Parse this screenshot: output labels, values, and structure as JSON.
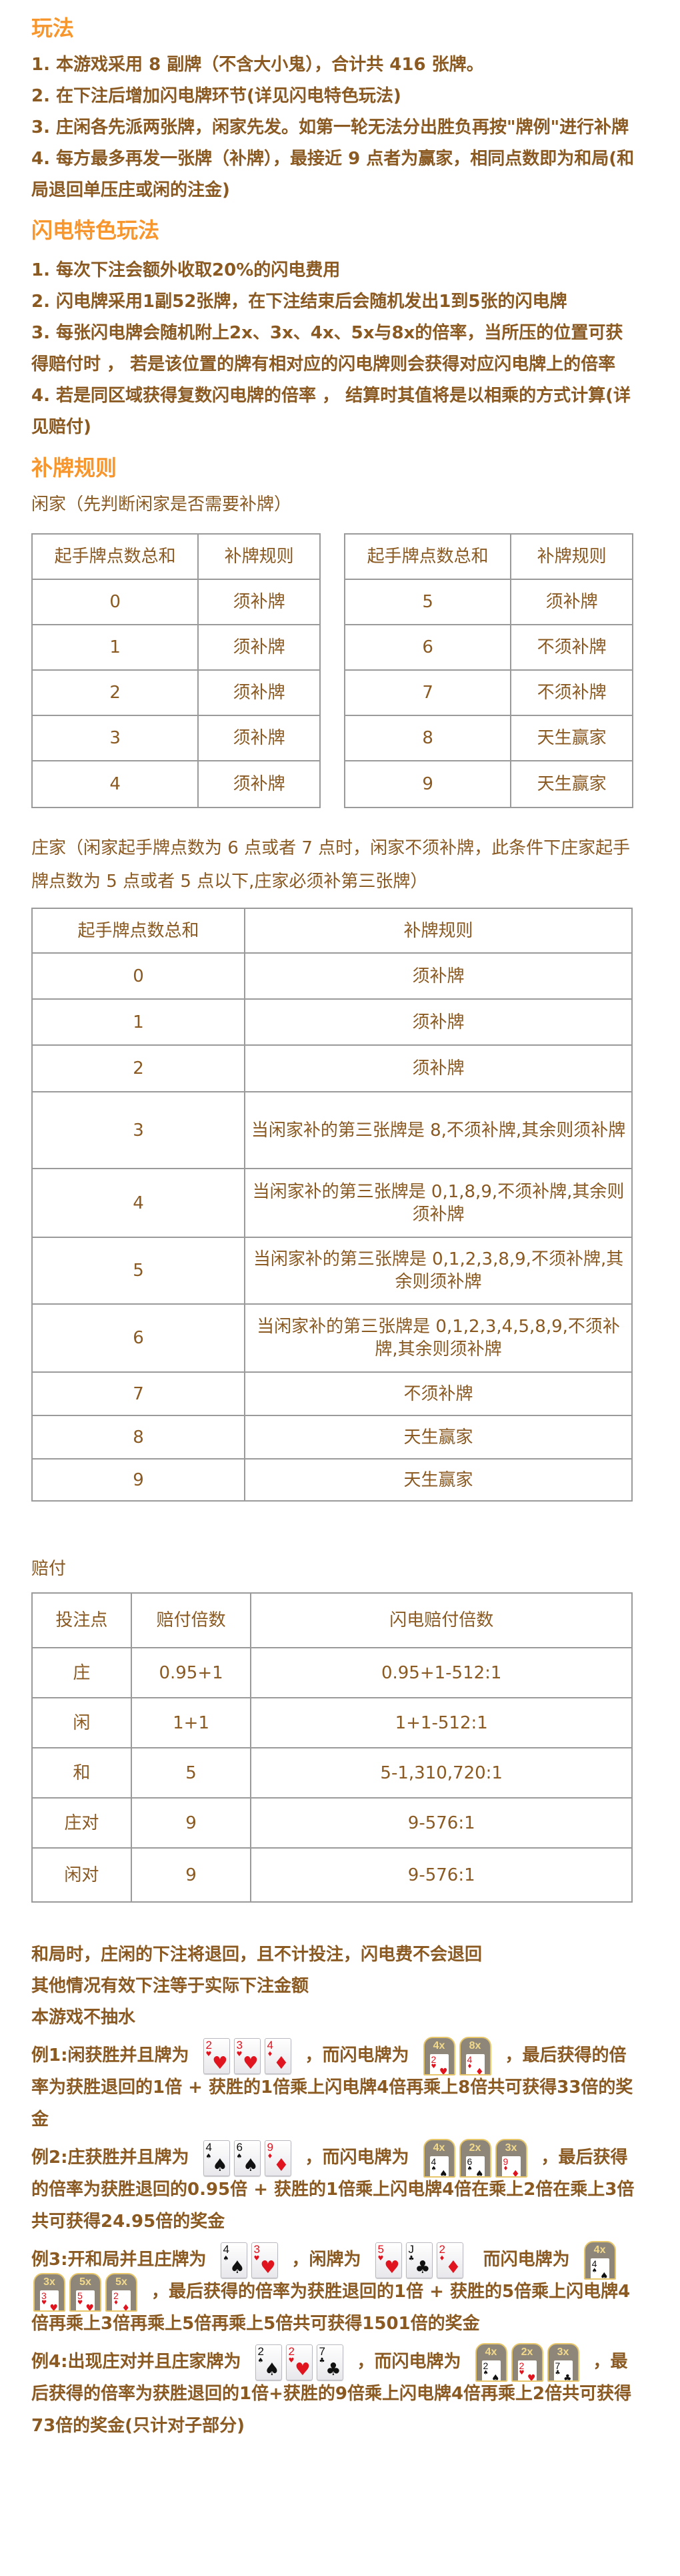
{
  "colors": {
    "heading": "#f7962c",
    "text": "#8a5a22",
    "border": "#9a9a9a",
    "red_suit": "#e0141e",
    "black_suit": "#111111",
    "flash_frame": "#e8c66a"
  },
  "rules": {
    "heading": "玩法",
    "items": [
      "1. 本游戏采用 8 副牌（不含大小鬼），合计共 416 张牌。",
      "2. 在下注后增加闪电牌环节(详见闪电特色玩法)",
      "3. 庄闲各先派两张牌，闲家先发。如第一轮无法分出胜负再按\"牌例\"进行补牌",
      "4. 每方最多再发一张牌（补牌），最接近 9 点者为赢家，相同点数即为和局(和局退回单压庄或闲的注金)"
    ]
  },
  "lightning": {
    "heading": "闪电特色玩法",
    "items": [
      "1. 每次下注会额外收取20%的闪电费用",
      "2. 闪电牌采用1副52张牌，在下注结束后会随机发出1到5张的闪电牌",
      "3. 每张闪电牌会随机附上2x、3x、4x、5x与8x的倍率，当所压的位置可获得赔付时 ， 若是该位置的牌有相对应的闪电牌则会获得对应闪电牌上的倍率",
      "4. 若是同区域获得复数闪电牌的倍率 ， 结算时其值将是以相乘的方式计算(详见赔付)"
    ]
  },
  "draw_rules": {
    "heading": "补牌规则",
    "player_note": "闲家（先判断闲家是否需要补牌）",
    "player_tables": [
      {
        "headers": [
          "起手牌点数总和",
          "补牌规则"
        ],
        "rows": [
          [
            "0",
            "须补牌"
          ],
          [
            "1",
            "须补牌"
          ],
          [
            "2",
            "须补牌"
          ],
          [
            "3",
            "须补牌"
          ],
          [
            "4",
            "须补牌"
          ]
        ]
      },
      {
        "headers": [
          "起手牌点数总和",
          "补牌规则"
        ],
        "rows": [
          [
            "5",
            "须补牌"
          ],
          [
            "6",
            "不须补牌"
          ],
          [
            "7",
            "不须补牌"
          ],
          [
            "8",
            "天生赢家"
          ],
          [
            "9",
            "天生赢家"
          ]
        ]
      }
    ],
    "banker_note": "庄家（闲家起手牌点数为 6 点或者 7 点时，闲家不须补牌，此条件下庄家起手牌点数为 5 点或者 5 点以下,庄家必须补第三张牌）",
    "banker_table": {
      "headers": [
        "起手牌点数总和",
        "补牌规则"
      ],
      "rows": [
        [
          "0",
          "须补牌"
        ],
        [
          "1",
          "须补牌"
        ],
        [
          "2",
          "须补牌"
        ],
        [
          "3",
          "当闲家补的第三张牌是 8,不须补牌,其余则须补牌"
        ],
        [
          "4",
          "当闲家补的第三张牌是 0,1,8,9,不须补牌,其余则须补牌"
        ],
        [
          "5",
          "当闲家补的第三张牌是 0,1,2,3,8,9,不须补牌,其余则须补牌"
        ],
        [
          "6",
          "当闲家补的第三张牌是 0,1,2,3,4,5,8,9,不须补牌,其余则须补牌"
        ],
        [
          "7",
          "不须补牌"
        ],
        [
          "8",
          "天生赢家"
        ],
        [
          "9",
          "天生赢家"
        ]
      ]
    }
  },
  "payout": {
    "label": "赔付",
    "headers": [
      "投注点",
      "赔付倍数",
      "闪电赔付倍数"
    ],
    "rows": [
      [
        "庄",
        "0.95+1",
        "0.95+1-512:1"
      ],
      [
        "闲",
        "1+1",
        "1+1-512:1"
      ],
      [
        "和",
        "5",
        "5-1,310,720:1"
      ],
      [
        "庄对",
        "9",
        "9-576:1"
      ],
      [
        "闲对",
        "9",
        "9-576:1"
      ]
    ]
  },
  "notes": [
    "和局时，庄闲的下注将退回，且不计投注，闪电费不会退回",
    "其他情况有效下注等于实际下注金额",
    "本游戏不抽水"
  ],
  "examples": [
    {
      "segments": [
        {
          "text": "例1:闲获胜并且牌为"
        },
        {
          "cards": [
            {
              "rank": "2",
              "suit": "♥"
            },
            {
              "rank": "3",
              "suit": "♥"
            },
            {
              "rank": "4",
              "suit": "♦"
            }
          ]
        },
        {
          "text": "，而闪电牌为"
        },
        {
          "flash": [
            {
              "mult": "4x",
              "rank": "2",
              "suit": "♥"
            },
            {
              "mult": "8x",
              "rank": "4",
              "suit": "♦"
            }
          ]
        },
        {
          "text": "，最后获得的倍率为获胜退回的1倍 + 获胜的1倍乘上闪电牌4倍再乘上8倍共可获得33倍的奖金"
        }
      ]
    },
    {
      "segments": [
        {
          "text": "例2:庄获胜并且牌为"
        },
        {
          "cards": [
            {
              "rank": "4",
              "suit": "♠"
            },
            {
              "rank": "6",
              "suit": "♠"
            },
            {
              "rank": "9",
              "suit": "♦"
            }
          ]
        },
        {
          "text": "，而闪电牌为"
        },
        {
          "flash": [
            {
              "mult": "4x",
              "rank": "4",
              "suit": "♠"
            },
            {
              "mult": "2x",
              "rank": "6",
              "suit": "♠"
            },
            {
              "mult": "3x",
              "rank": "9",
              "suit": "♦"
            }
          ]
        },
        {
          "text": "，最后获得的倍率为获胜退回的0.95倍 + 获胜的1倍乘上闪电牌4倍在乘上2倍在乘上3倍共可获得24.95倍的奖金"
        }
      ]
    },
    {
      "segments": [
        {
          "text": "例3:开和局并且庄牌为"
        },
        {
          "cards": [
            {
              "rank": "4",
              "suit": "♠"
            },
            {
              "rank": "3",
              "suit": "♥"
            }
          ]
        },
        {
          "text": "，闲牌为"
        },
        {
          "cards": [
            {
              "rank": "5",
              "suit": "♥"
            },
            {
              "rank": "J",
              "suit": "♣"
            },
            {
              "rank": "2",
              "suit": "♦"
            }
          ]
        },
        {
          "text": " 而闪电牌为"
        },
        {
          "flash": [
            {
              "mult": "4x",
              "rank": "4",
              "suit": "♠"
            },
            {
              "mult": "3x",
              "rank": "3",
              "suit": "♥"
            },
            {
              "mult": "5x",
              "rank": "5",
              "suit": "♥"
            },
            {
              "mult": "5x",
              "rank": "2",
              "suit": "♦"
            }
          ]
        },
        {
          "text": "，最后获得的倍率为获胜退回的1倍 + 获胜的5倍乘上闪电牌4倍再乘上3倍再乘上5倍再乘上5倍共可获得1501倍的奖金"
        }
      ]
    },
    {
      "segments": [
        {
          "text": "例4:出现庄对并且庄家牌为"
        },
        {
          "cards": [
            {
              "rank": "2",
              "suit": "♠"
            },
            {
              "rank": "2",
              "suit": "♥"
            },
            {
              "rank": "7",
              "suit": "♣"
            }
          ]
        },
        {
          "text": "，而闪电牌为"
        },
        {
          "flash": [
            {
              "mult": "4x",
              "rank": "2",
              "suit": "♠"
            },
            {
              "mult": "2x",
              "rank": "2",
              "suit": "♥"
            },
            {
              "mult": "3x",
              "rank": "7",
              "suit": "♣"
            }
          ]
        },
        {
          "text": "，最后获得的倍率为获胜退回的1倍+获胜的9倍乘上闪电牌4倍再乘上2倍共可获得73倍的奖金(只计对子部分)"
        }
      ]
    }
  ]
}
